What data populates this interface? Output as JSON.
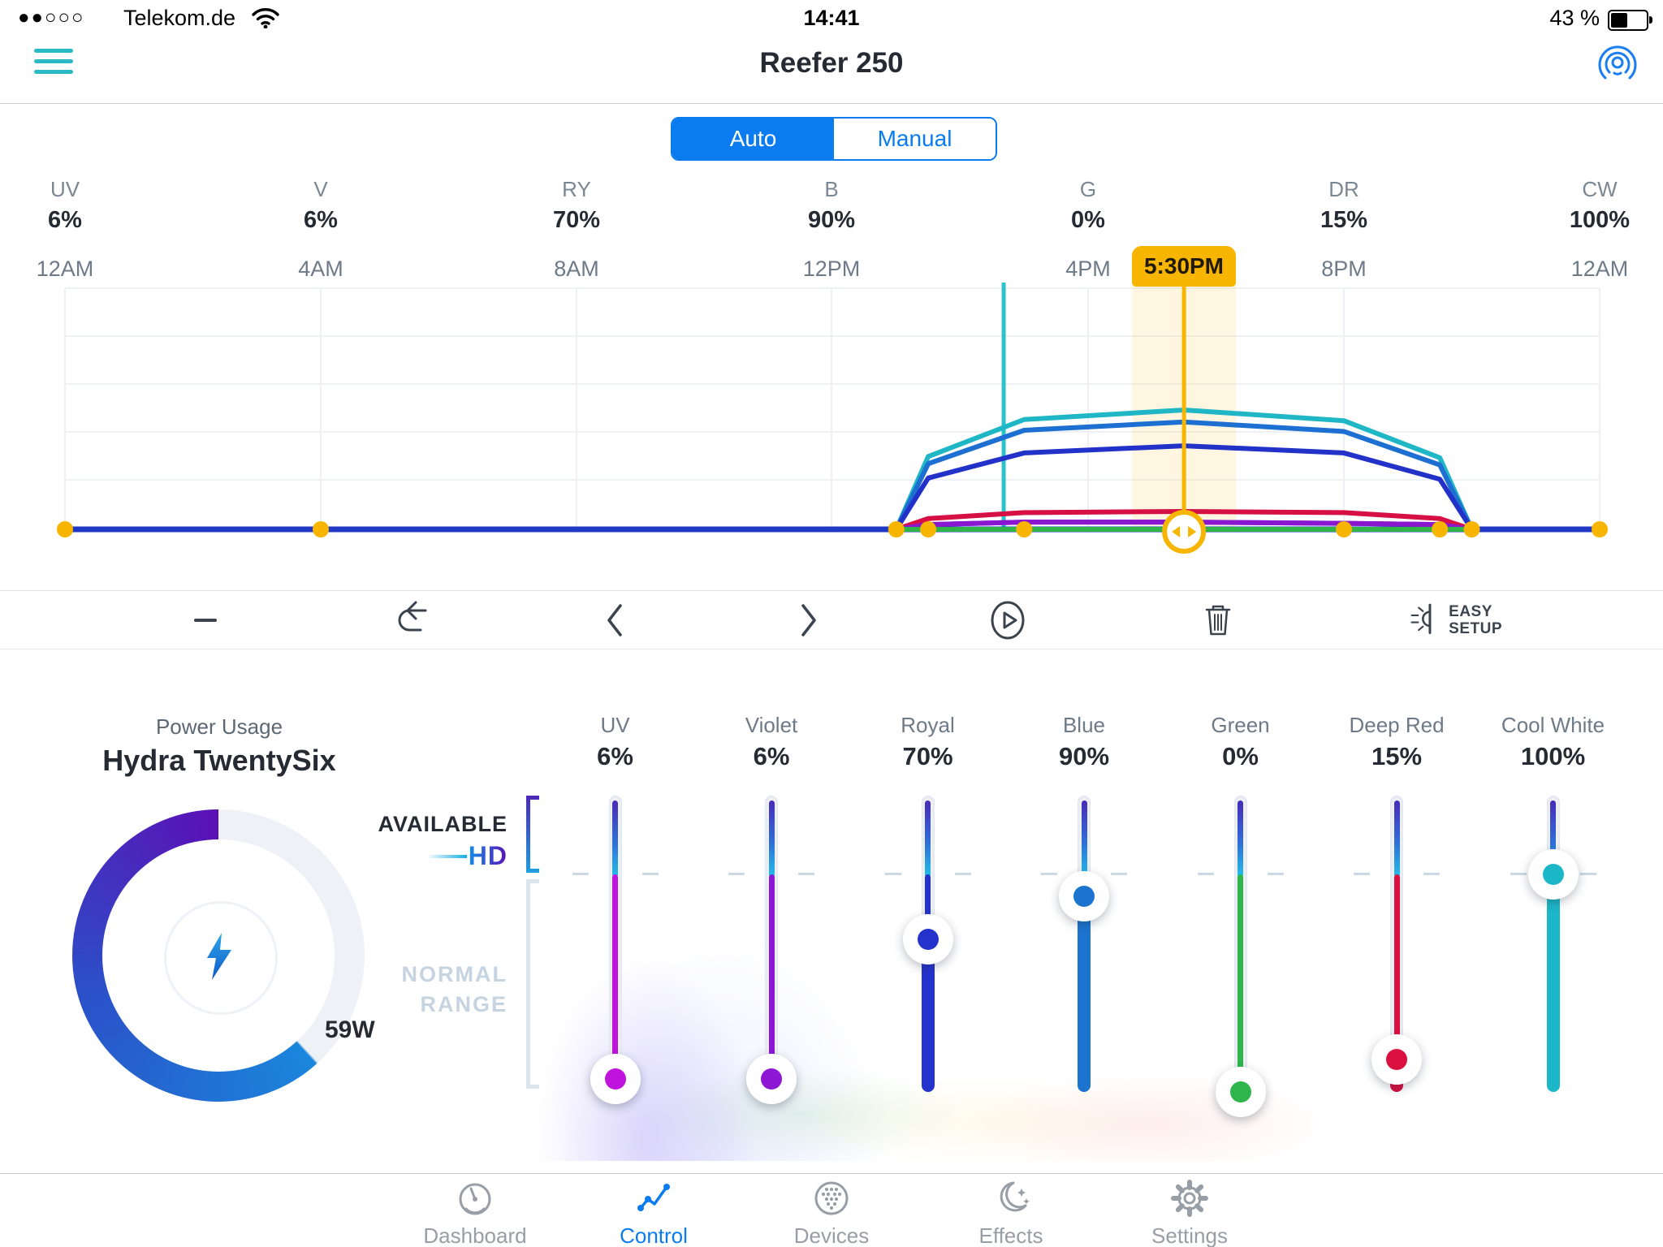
{
  "status_bar": {
    "signal_dots": "●●○○○",
    "carrier": "Telekom.de",
    "time": "14:41",
    "battery_percent": "43 %"
  },
  "header": {
    "title": "Reefer 250"
  },
  "mode_toggle": {
    "options": [
      "Auto",
      "Manual"
    ],
    "selected": "Auto"
  },
  "channel_summary": [
    {
      "code": "UV",
      "value": "6%"
    },
    {
      "code": "V",
      "value": "6%"
    },
    {
      "code": "RY",
      "value": "70%"
    },
    {
      "code": "B",
      "value": "90%"
    },
    {
      "code": "G",
      "value": "0%"
    },
    {
      "code": "DR",
      "value": "15%"
    },
    {
      "code": "CW",
      "value": "100%"
    }
  ],
  "timeline": {
    "ticks": [
      "12AM",
      "4AM",
      "8AM",
      "12PM",
      "4PM",
      "8PM",
      "12AM"
    ],
    "selected_label": "5:30PM"
  },
  "chart_data": {
    "type": "line",
    "title": "Daily light schedule (channel intensity % over 24h)",
    "x_ticks": [
      "12AM",
      "4AM",
      "8AM",
      "12PM",
      "4PM",
      "8PM",
      "12AM"
    ],
    "x_tick_hours": [
      0,
      4,
      8,
      12,
      16,
      20,
      24
    ],
    "ylim_percent": [
      0,
      200
    ],
    "grid": true,
    "keyframe_hours": [
      0,
      4,
      13,
      13.5,
      15,
      17.5,
      20,
      21.5,
      22,
      24
    ],
    "series": [
      {
        "name": "CW",
        "color": "#1fb7c6",
        "x": [
          13,
          13.5,
          15,
          17.5,
          20,
          21.5,
          22
        ],
        "values": [
          0,
          61,
          92,
          100,
          91,
          60,
          0
        ]
      },
      {
        "name": "B",
        "color": "#1e6fd2",
        "x": [
          13,
          13.5,
          15,
          17.5,
          20,
          21.5,
          22
        ],
        "values": [
          0,
          55,
          83,
          90,
          82,
          54,
          0
        ]
      },
      {
        "name": "RY",
        "color": "#2231c8",
        "x": [
          13,
          13.5,
          15,
          17.5,
          20,
          21.5,
          22
        ],
        "values": [
          0,
          43,
          64,
          70,
          64,
          42,
          0
        ]
      },
      {
        "name": "DR",
        "color": "#d60f45",
        "x": [
          13,
          13.5,
          15,
          17.5,
          20,
          21.5,
          22
        ],
        "values": [
          0,
          9,
          14,
          15,
          14,
          9,
          0
        ]
      },
      {
        "name": "UV",
        "color": "#c013de",
        "x": [
          13,
          13.5,
          15,
          17.5,
          20,
          21.5,
          22
        ],
        "values": [
          0,
          4,
          6,
          6,
          5,
          4,
          0
        ]
      },
      {
        "name": "V",
        "color": "#8817cf",
        "x": [
          13,
          13.5,
          15,
          17.5,
          20,
          21.5,
          22
        ],
        "values": [
          0,
          4,
          6,
          6,
          5,
          4,
          0
        ]
      },
      {
        "name": "G",
        "color": "#30b44a",
        "x": [
          13,
          22
        ],
        "values": [
          0,
          0
        ]
      }
    ],
    "baseline_color": "#2038c4",
    "selection": {
      "hour": 17.5,
      "label": "5:30PM",
      "color": "#f7b500"
    },
    "current_time": {
      "hour": 14.68,
      "color": "#2cc2ca"
    }
  },
  "toolbar": {
    "items": [
      {
        "name": "remove-point",
        "icon": "minus"
      },
      {
        "name": "undo",
        "icon": "undo"
      },
      {
        "name": "previous-point",
        "icon": "chevron-left"
      },
      {
        "name": "next-point",
        "icon": "chevron-right"
      },
      {
        "name": "preview",
        "icon": "play"
      },
      {
        "name": "delete",
        "icon": "trash"
      },
      {
        "name": "easy-setup",
        "icon": "easy-setup",
        "label_line1": "EASY",
        "label_line2": "SETUP"
      }
    ]
  },
  "power": {
    "label": "Power Usage",
    "device_name": "Hydra TwentySix",
    "wattage": "59W",
    "gauge_gap_end_deg": 137,
    "gauge_colors": {
      "start": "#1a86dc",
      "mid": "#2b50c8",
      "end": "#5b10b6",
      "track": "#eef1f6"
    },
    "bolt_colors": {
      "top": "#2ea7e8",
      "bottom": "#1258c8"
    }
  },
  "slider_section": {
    "available_label": "AVAILABLE",
    "hd_label": "HD",
    "normal_range_lines": [
      "NORMAL",
      "RANGE"
    ],
    "sliders": [
      {
        "name": "UV",
        "value": 6,
        "display": "6%",
        "color": "#c013de"
      },
      {
        "name": "Violet",
        "value": 6,
        "display": "6%",
        "color": "#8e17d6"
      },
      {
        "name": "Royal",
        "value": 70,
        "display": "70%",
        "color": "#2433cc"
      },
      {
        "name": "Blue",
        "value": 90,
        "display": "90%",
        "color": "#1d74d0"
      },
      {
        "name": "Green",
        "value": 0,
        "display": "0%",
        "color": "#2eb54c"
      },
      {
        "name": "Deep Red",
        "value": 15,
        "display": "15%",
        "color": "#dc1040"
      },
      {
        "name": "Cool White",
        "value": 100,
        "display": "100%",
        "color": "#1cb6c9"
      }
    ]
  },
  "tab_bar": {
    "active_color": "#0b7bf0",
    "inactive_color": "#989ea5",
    "tabs": [
      {
        "label": "Dashboard",
        "icon": "dashboard",
        "active": false
      },
      {
        "label": "Control",
        "icon": "control",
        "active": true
      },
      {
        "label": "Devices",
        "icon": "devices",
        "active": false
      },
      {
        "label": "Effects",
        "icon": "effects",
        "active": false
      },
      {
        "label": "Settings",
        "icon": "settings",
        "active": false
      }
    ]
  }
}
